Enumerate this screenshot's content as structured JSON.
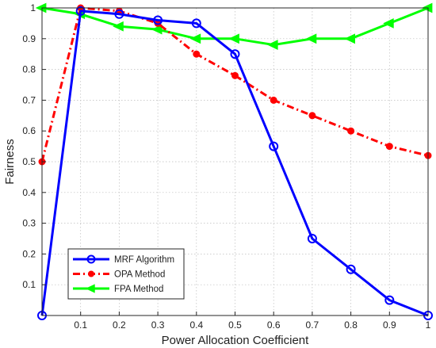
{
  "chart_data": {
    "type": "line",
    "title": "",
    "xlabel": "Power Allocation Coefficient",
    "ylabel": "Fairness",
    "xlim": [
      0,
      1
    ],
    "ylim": [
      0,
      1
    ],
    "x_ticks": [
      0.1,
      0.2,
      0.3,
      0.4,
      0.5,
      0.6,
      0.7,
      0.8,
      0.9,
      1
    ],
    "x_tick_labels": [
      "0.1",
      "0.2",
      "0.3",
      "0.4",
      "0.5",
      "0.6",
      "0.7",
      "0.8",
      "0.9",
      "1"
    ],
    "y_ticks": [
      0.1,
      0.2,
      0.3,
      0.4,
      0.5,
      0.6,
      0.7,
      0.8,
      0.9,
      1
    ],
    "y_tick_labels": [
      "0.1",
      "0.2",
      "0.3",
      "0.4",
      "0.5",
      "0.6",
      "0.7",
      "0.8",
      "0.9",
      "1"
    ],
    "grid": true,
    "legend_position": "bottom-left",
    "series": [
      {
        "name": "MRF Algorithm",
        "color": "#0000ff",
        "line_style": "solid",
        "marker": "circle",
        "x": [
          0,
          0.1,
          0.2,
          0.3,
          0.4,
          0.5,
          0.6,
          0.7,
          0.8,
          0.9,
          1
        ],
        "y": [
          0,
          0.99,
          0.98,
          0.96,
          0.95,
          0.85,
          0.55,
          0.25,
          0.15,
          0.05,
          0
        ]
      },
      {
        "name": "OPA Method",
        "color": "#ff0000",
        "line_style": "dash-dot",
        "marker": "dot",
        "x": [
          0,
          0.1,
          0.2,
          0.3,
          0.4,
          0.5,
          0.6,
          0.7,
          0.8,
          0.9,
          1
        ],
        "y": [
          0.5,
          1.0,
          0.99,
          0.95,
          0.85,
          0.78,
          0.7,
          0.65,
          0.6,
          0.55,
          0.52
        ]
      },
      {
        "name": "FPA Method",
        "color": "#00ff00",
        "line_style": "solid",
        "marker": "triangle-left",
        "x": [
          0,
          0.1,
          0.2,
          0.3,
          0.4,
          0.5,
          0.6,
          0.7,
          0.8,
          0.9,
          1
        ],
        "y": [
          1.0,
          0.98,
          0.94,
          0.93,
          0.9,
          0.9,
          0.88,
          0.9,
          0.9,
          0.95,
          1.0
        ]
      }
    ]
  }
}
